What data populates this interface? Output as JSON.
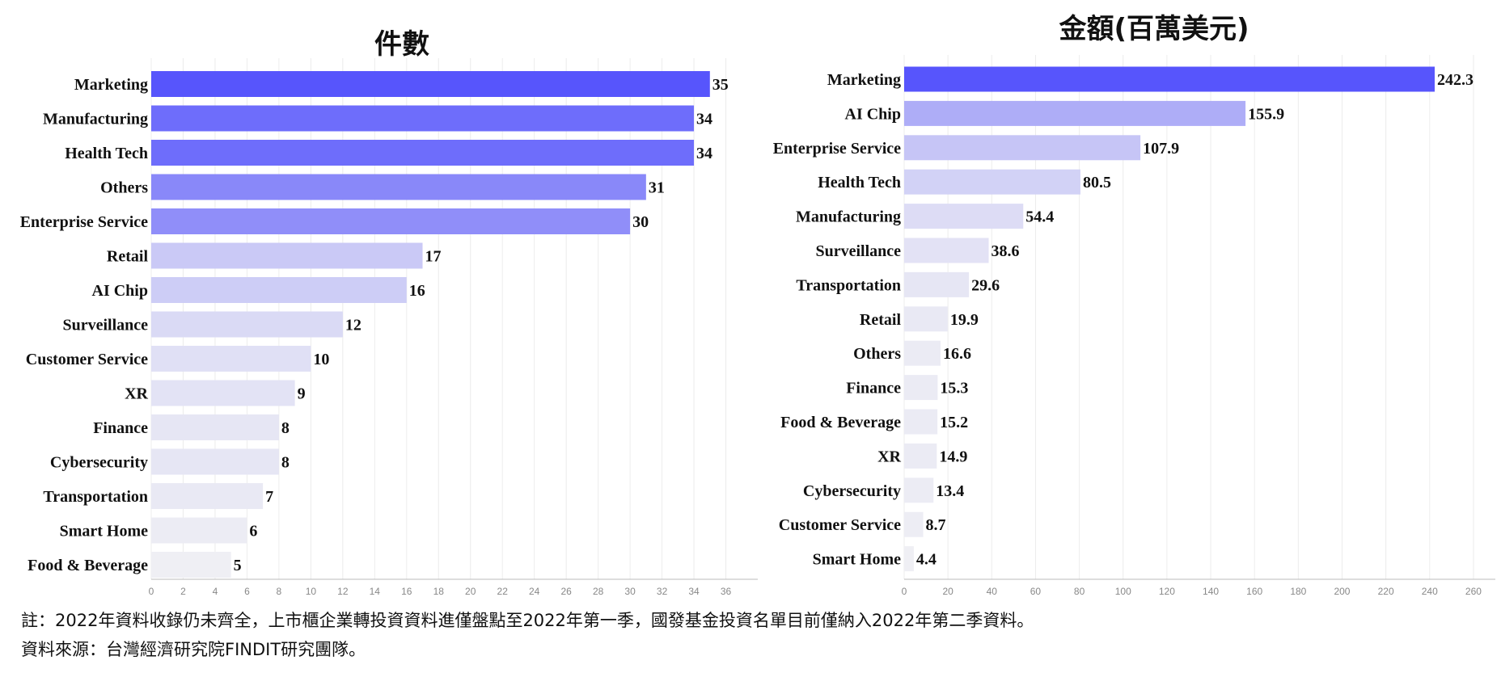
{
  "chart_data": [
    {
      "type": "bar",
      "orientation": "horizontal",
      "title": "件數",
      "categories": [
        "Marketing",
        "Manufacturing",
        "Health Tech",
        "Others",
        "Enterprise Service",
        "Retail",
        "AI Chip",
        "Surveillance",
        "Customer Service",
        "XR",
        "Finance",
        "Cybersecurity",
        "Transportation",
        "Smart Home",
        "Food & Beverage"
      ],
      "values": [
        35,
        34,
        34,
        31,
        30,
        17,
        16,
        12,
        10,
        9,
        8,
        8,
        7,
        6,
        5
      ],
      "xlim": [
        0,
        38
      ],
      "xticks": [
        0,
        2,
        4,
        6,
        8,
        10,
        12,
        14,
        16,
        18,
        20,
        22,
        24,
        26,
        28,
        30,
        32,
        34,
        36
      ],
      "grid": true,
      "color_high": "#5755fc",
      "color_low": "#efeff4"
    },
    {
      "type": "bar",
      "orientation": "horizontal",
      "title": "金額(百萬美元)",
      "categories": [
        "Marketing",
        "AI Chip",
        "Enterprise Service",
        "Health Tech",
        "Manufacturing",
        "Surveillance",
        "Transportation",
        "Retail",
        "Others",
        "Finance",
        "Food & Beverage",
        "XR",
        "Cybersecurity",
        "Customer Service",
        "Smart Home"
      ],
      "values": [
        242.3,
        155.9,
        107.9,
        80.5,
        54.4,
        38.6,
        29.6,
        19.9,
        16.6,
        15.3,
        15.2,
        14.9,
        13.4,
        8.7,
        4.4
      ],
      "value_labels": [
        "242.3",
        "155.9",
        "107.9",
        "80.5",
        "54.4",
        "38.6",
        "29.6",
        "19.9",
        "16.6",
        "15.3",
        "15.2",
        "14.9",
        "13.4",
        "8.7",
        "4.4"
      ],
      "xlim": [
        0,
        270
      ],
      "xticks": [
        0,
        20,
        40,
        60,
        80,
        100,
        120,
        140,
        160,
        180,
        200,
        220,
        240,
        260
      ],
      "grid": true,
      "color_high": "#5755fc",
      "color_low": "#efeff4"
    }
  ],
  "footnotes": {
    "note": "註：2022年資料收錄仍未齊全，上市櫃企業轉投資資料進僅盤點至2022年第一季，國發基金投資名單目前僅納入2022年第二季資料。",
    "source": "資料來源：台灣經濟研究院FINDIT研究團隊。"
  }
}
